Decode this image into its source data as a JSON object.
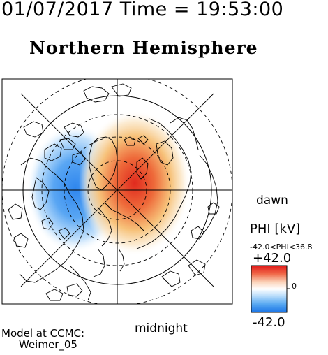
{
  "header": {
    "timestamp": "01/07/2017 Time = 19:53:00",
    "hemisphere": "Northern Hemisphere"
  },
  "map": {
    "projection": "polar",
    "pole": "north",
    "bottom_label": "midnight",
    "right_label": "dawn"
  },
  "colorbar": {
    "title": "PHI [kV]",
    "range_text": "-42.0<PHI<36.8",
    "max_label": "+42.0",
    "zero_label": "0",
    "min_label": "-42.0",
    "colors": {
      "low": "#1f78e8",
      "mid": "#ffffff",
      "high": "#e02020"
    }
  },
  "footer": {
    "model_line1": "Model at CCMC:",
    "model_line2": "Weimer_05"
  },
  "colors": {
    "negative_potential": "#3c8ff0",
    "positive_potential": "#e23a2a",
    "lines": "#000000",
    "background": "#ffffff"
  }
}
